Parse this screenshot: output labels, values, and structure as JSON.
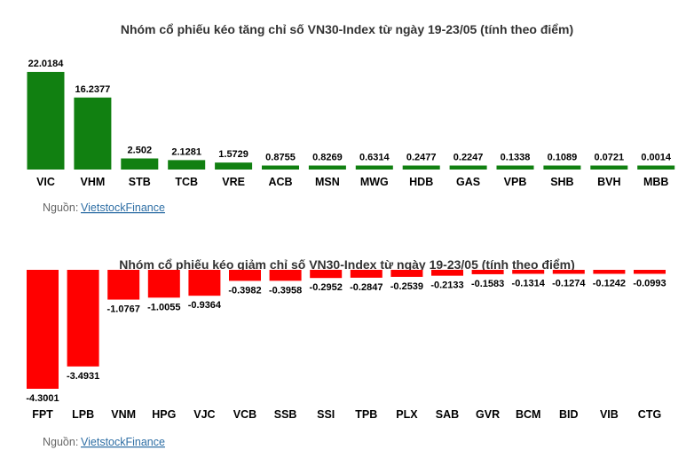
{
  "colors": {
    "up": "#118011",
    "down": "#ff0000",
    "link": "#2f6fa5"
  },
  "chart_data": [
    {
      "type": "bar",
      "title": "Nhóm cổ phiếu kéo tăng chỉ số VN30-Index từ ngày 19-23/05 (tính theo điểm)",
      "categories": [
        "VIC",
        "VHM",
        "STB",
        "TCB",
        "VRE",
        "ACB",
        "MSN",
        "MWG",
        "HDB",
        "GAS",
        "VPB",
        "SHB",
        "BVH",
        "MBB"
      ],
      "values": [
        22.0184,
        16.2377,
        2.502,
        2.1281,
        1.5729,
        0.8755,
        0.8269,
        0.6314,
        0.2477,
        0.2247,
        0.1338,
        0.1089,
        0.0721,
        0.0014
      ],
      "labels": [
        "22.0184",
        "16.2377",
        "2.502",
        "2.1281",
        "1.5729",
        "0.8755",
        "0.8269",
        "0.6314",
        "0.2477",
        "0.2247",
        "0.1338",
        "0.1089",
        "0.0721",
        "0.0014"
      ],
      "color": "#118011",
      "source_prefix": "Nguồn: ",
      "source_link": "VietstockFinance"
    },
    {
      "type": "bar",
      "title": "Nhóm cổ phiếu kéo giảm chỉ số VN30-Index từ ngày 19-23/05 (tính theo điểm)",
      "categories": [
        "FPT",
        "LPB",
        "VNM",
        "HPG",
        "VJC",
        "VCB",
        "SSB",
        "SSI",
        "TPB",
        "PLX",
        "SAB",
        "GVR",
        "BCM",
        "BID",
        "VIB",
        "CTG"
      ],
      "values": [
        -4.3001,
        -3.4931,
        -1.0767,
        -1.0055,
        -0.9364,
        -0.3982,
        -0.3958,
        -0.2952,
        -0.2847,
        -0.2539,
        -0.2133,
        -0.1583,
        -0.1314,
        -0.1274,
        -0.1242,
        -0.0993
      ],
      "labels": [
        "-4.3001",
        "-3.4931",
        "-1.0767",
        "-1.0055",
        "-0.9364",
        "-0.3982",
        "-0.3958",
        "-0.2952",
        "-0.2847",
        "-0.2539",
        "-0.2133",
        "-0.1583",
        "-0.1314",
        "-0.1274",
        "-0.1242",
        "-0.0993"
      ],
      "color": "#ff0000",
      "source_prefix": "Nguồn: ",
      "source_link": "VietstockFinance"
    }
  ]
}
